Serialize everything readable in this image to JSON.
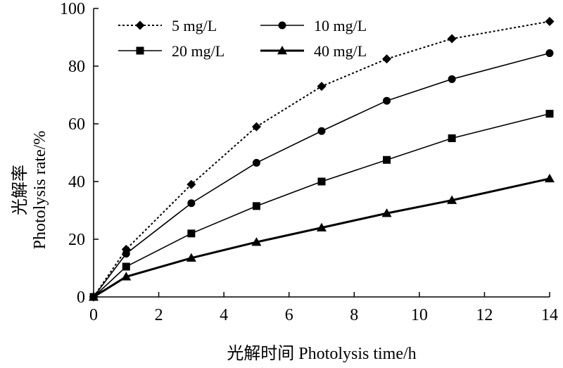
{
  "chart_data": {
    "type": "line",
    "title": "",
    "xlabel": "光解时间  Photolysis time/h",
    "ylabel_cn": "光解率",
    "ylabel_en": "Photolysis rate/%",
    "xlim": [
      0,
      14
    ],
    "ylim": [
      0,
      100
    ],
    "xticks": [
      0,
      2,
      4,
      6,
      8,
      10,
      12,
      14
    ],
    "yticks": [
      0,
      20,
      40,
      60,
      80,
      100
    ],
    "grid": false,
    "legend_position": "top-left",
    "x": [
      0,
      1,
      3,
      5,
      7,
      9,
      11,
      14
    ],
    "series": [
      {
        "name": "5 mg/L",
        "marker": "diamond",
        "line": "dotted",
        "color": "#000000",
        "values": [
          0,
          16.5,
          39,
          59,
          73,
          82.5,
          89.5,
          95.5
        ]
      },
      {
        "name": "10 mg/L",
        "marker": "circle",
        "line": "solid",
        "color": "#000000",
        "values": [
          0,
          15,
          32.5,
          46.5,
          57.5,
          68,
          75.5,
          84.5
        ]
      },
      {
        "name": "20 mg/L",
        "marker": "square",
        "line": "solid",
        "color": "#000000",
        "values": [
          0,
          10.5,
          22,
          31.5,
          40,
          47.5,
          55,
          63.5
        ]
      },
      {
        "name": "40 mg/L",
        "marker": "triangle",
        "line": "solid-thick",
        "color": "#000000",
        "values": [
          0,
          7,
          13.5,
          19,
          24,
          29,
          33.5,
          41
        ]
      }
    ]
  }
}
